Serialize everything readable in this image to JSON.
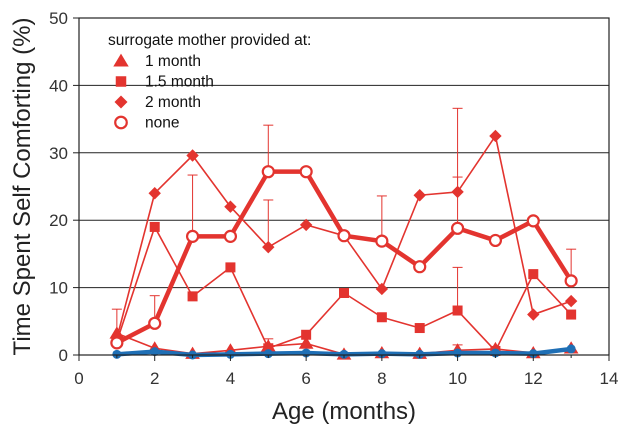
{
  "chart_data": {
    "type": "line",
    "xlabel": "Age (months)",
    "ylabel": "Time Spent Self Comforting (%)",
    "xlim": [
      0,
      14
    ],
    "ylim": [
      0,
      50
    ],
    "xticks": [
      0,
      2,
      4,
      6,
      8,
      10,
      12,
      14
    ],
    "yticks": [
      0,
      10,
      20,
      30,
      40,
      50
    ],
    "grid": "horizontal",
    "legend": {
      "title": "surrogate mother provided at:",
      "placement": "top-left",
      "entries": [
        "1 month",
        "1.5 month",
        "2 month",
        "none"
      ]
    },
    "series": [
      {
        "name": "1 month",
        "marker": "triangle",
        "color": "#e3342f",
        "x": [
          1,
          2,
          3,
          4,
          5,
          6,
          7,
          8,
          9,
          10,
          11,
          12,
          13
        ],
        "values": [
          3.2,
          1.0,
          0.2,
          0.7,
          1.3,
          1.7,
          0.1,
          0.3,
          0.2,
          0.7,
          0.9,
          0.3,
          1.0
        ],
        "err_upper": [
          6.8,
          null,
          null,
          null,
          2.4,
          null,
          null,
          null,
          null,
          1.5,
          null,
          null,
          null
        ]
      },
      {
        "name": "1.5 month",
        "marker": "square",
        "color": "#e3342f",
        "x": [
          1,
          2,
          3,
          4,
          5,
          6,
          7,
          8,
          9,
          10,
          11,
          12,
          13
        ],
        "values": [
          2.0,
          19.0,
          8.7,
          13.0,
          1.0,
          3.0,
          9.2,
          5.6,
          4.0,
          6.6,
          0.6,
          12.0,
          6.0
        ],
        "err_upper": [
          null,
          null,
          null,
          null,
          null,
          null,
          null,
          null,
          null,
          13.0,
          null,
          null,
          null
        ]
      },
      {
        "name": "2 month",
        "marker": "diamond",
        "color": "#e3342f",
        "x": [
          1,
          2,
          3,
          4,
          5,
          6,
          7,
          8,
          9,
          10,
          11,
          12,
          13
        ],
        "values": [
          2.5,
          24.0,
          29.6,
          22.0,
          16.0,
          19.3,
          17.7,
          9.8,
          23.7,
          24.2,
          32.5,
          6.0,
          8.0
        ],
        "err_upper": [
          null,
          null,
          null,
          null,
          23.0,
          null,
          null,
          null,
          null,
          36.6,
          null,
          null,
          null
        ]
      },
      {
        "name": "none",
        "marker": "open-circle",
        "color": "#e3342f",
        "x": [
          1,
          2,
          3,
          4,
          5,
          6,
          7,
          8,
          9,
          10,
          11,
          12,
          13
        ],
        "values": [
          1.8,
          4.7,
          17.6,
          17.6,
          27.2,
          27.2,
          17.7,
          16.9,
          13.1,
          18.8,
          17.0,
          19.9,
          11.0
        ],
        "err_upper": [
          null,
          8.8,
          26.7,
          null,
          34.1,
          null,
          null,
          23.6,
          null,
          26.4,
          null,
          null,
          15.7
        ]
      },
      {
        "name": "",
        "marker": "filled-circle",
        "color": "#1f6fb5",
        "x": [
          1,
          2,
          3,
          4,
          5,
          6,
          7,
          8,
          9,
          10,
          11,
          12,
          13
        ],
        "values": [
          0.1,
          0.5,
          0.0,
          0.1,
          0.2,
          0.3,
          0.1,
          0.2,
          0.1,
          0.3,
          0.3,
          0.2,
          0.9
        ],
        "err_upper": [
          null,
          null,
          null,
          null,
          null,
          null,
          null,
          null,
          null,
          null,
          null,
          null,
          null
        ]
      }
    ]
  }
}
